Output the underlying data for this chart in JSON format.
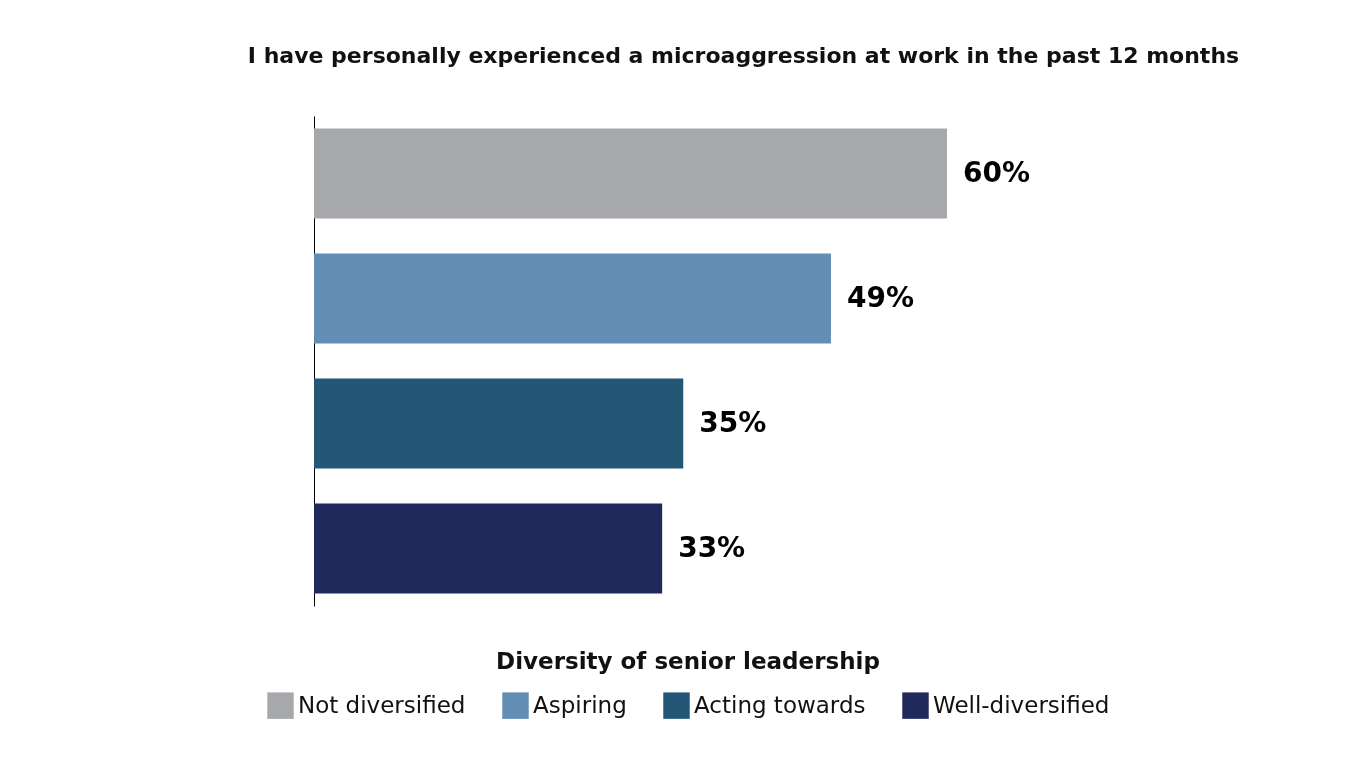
{
  "chart_data": {
    "type": "bar",
    "title": "I have personally experienced a microaggression at work in the past 12 months",
    "orientation": "horizontal",
    "stacked": true,
    "categories": [
      null,
      null,
      null,
      null
    ],
    "series": [
      {
        "name": "Not diversified",
        "color": "#a7a8ac",
        "values": [
          60,
          null,
          null,
          null
        ],
        "value_labels": [
          "60%",
          null,
          null,
          null
        ]
      },
      {
        "name": "Aspiring",
        "color": "#628db5",
        "values": [
          null,
          49,
          null,
          null
        ],
        "value_labels": [
          null,
          "49%",
          null,
          null
        ]
      },
      {
        "name": "Acting towards",
        "color": "#245775",
        "values": [
          null,
          null,
          35,
          null
        ],
        "value_labels": [
          null,
          null,
          "35%",
          null
        ]
      },
      {
        "name": "Well-diversified",
        "color": "#21295c",
        "values": [
          null,
          null,
          null,
          33
        ],
        "value_labels": [
          null,
          null,
          null,
          "33%"
        ]
      }
    ],
    "legend_title": "Diversity of senior leadership",
    "legend": "bottom",
    "tick_labels": false
  }
}
